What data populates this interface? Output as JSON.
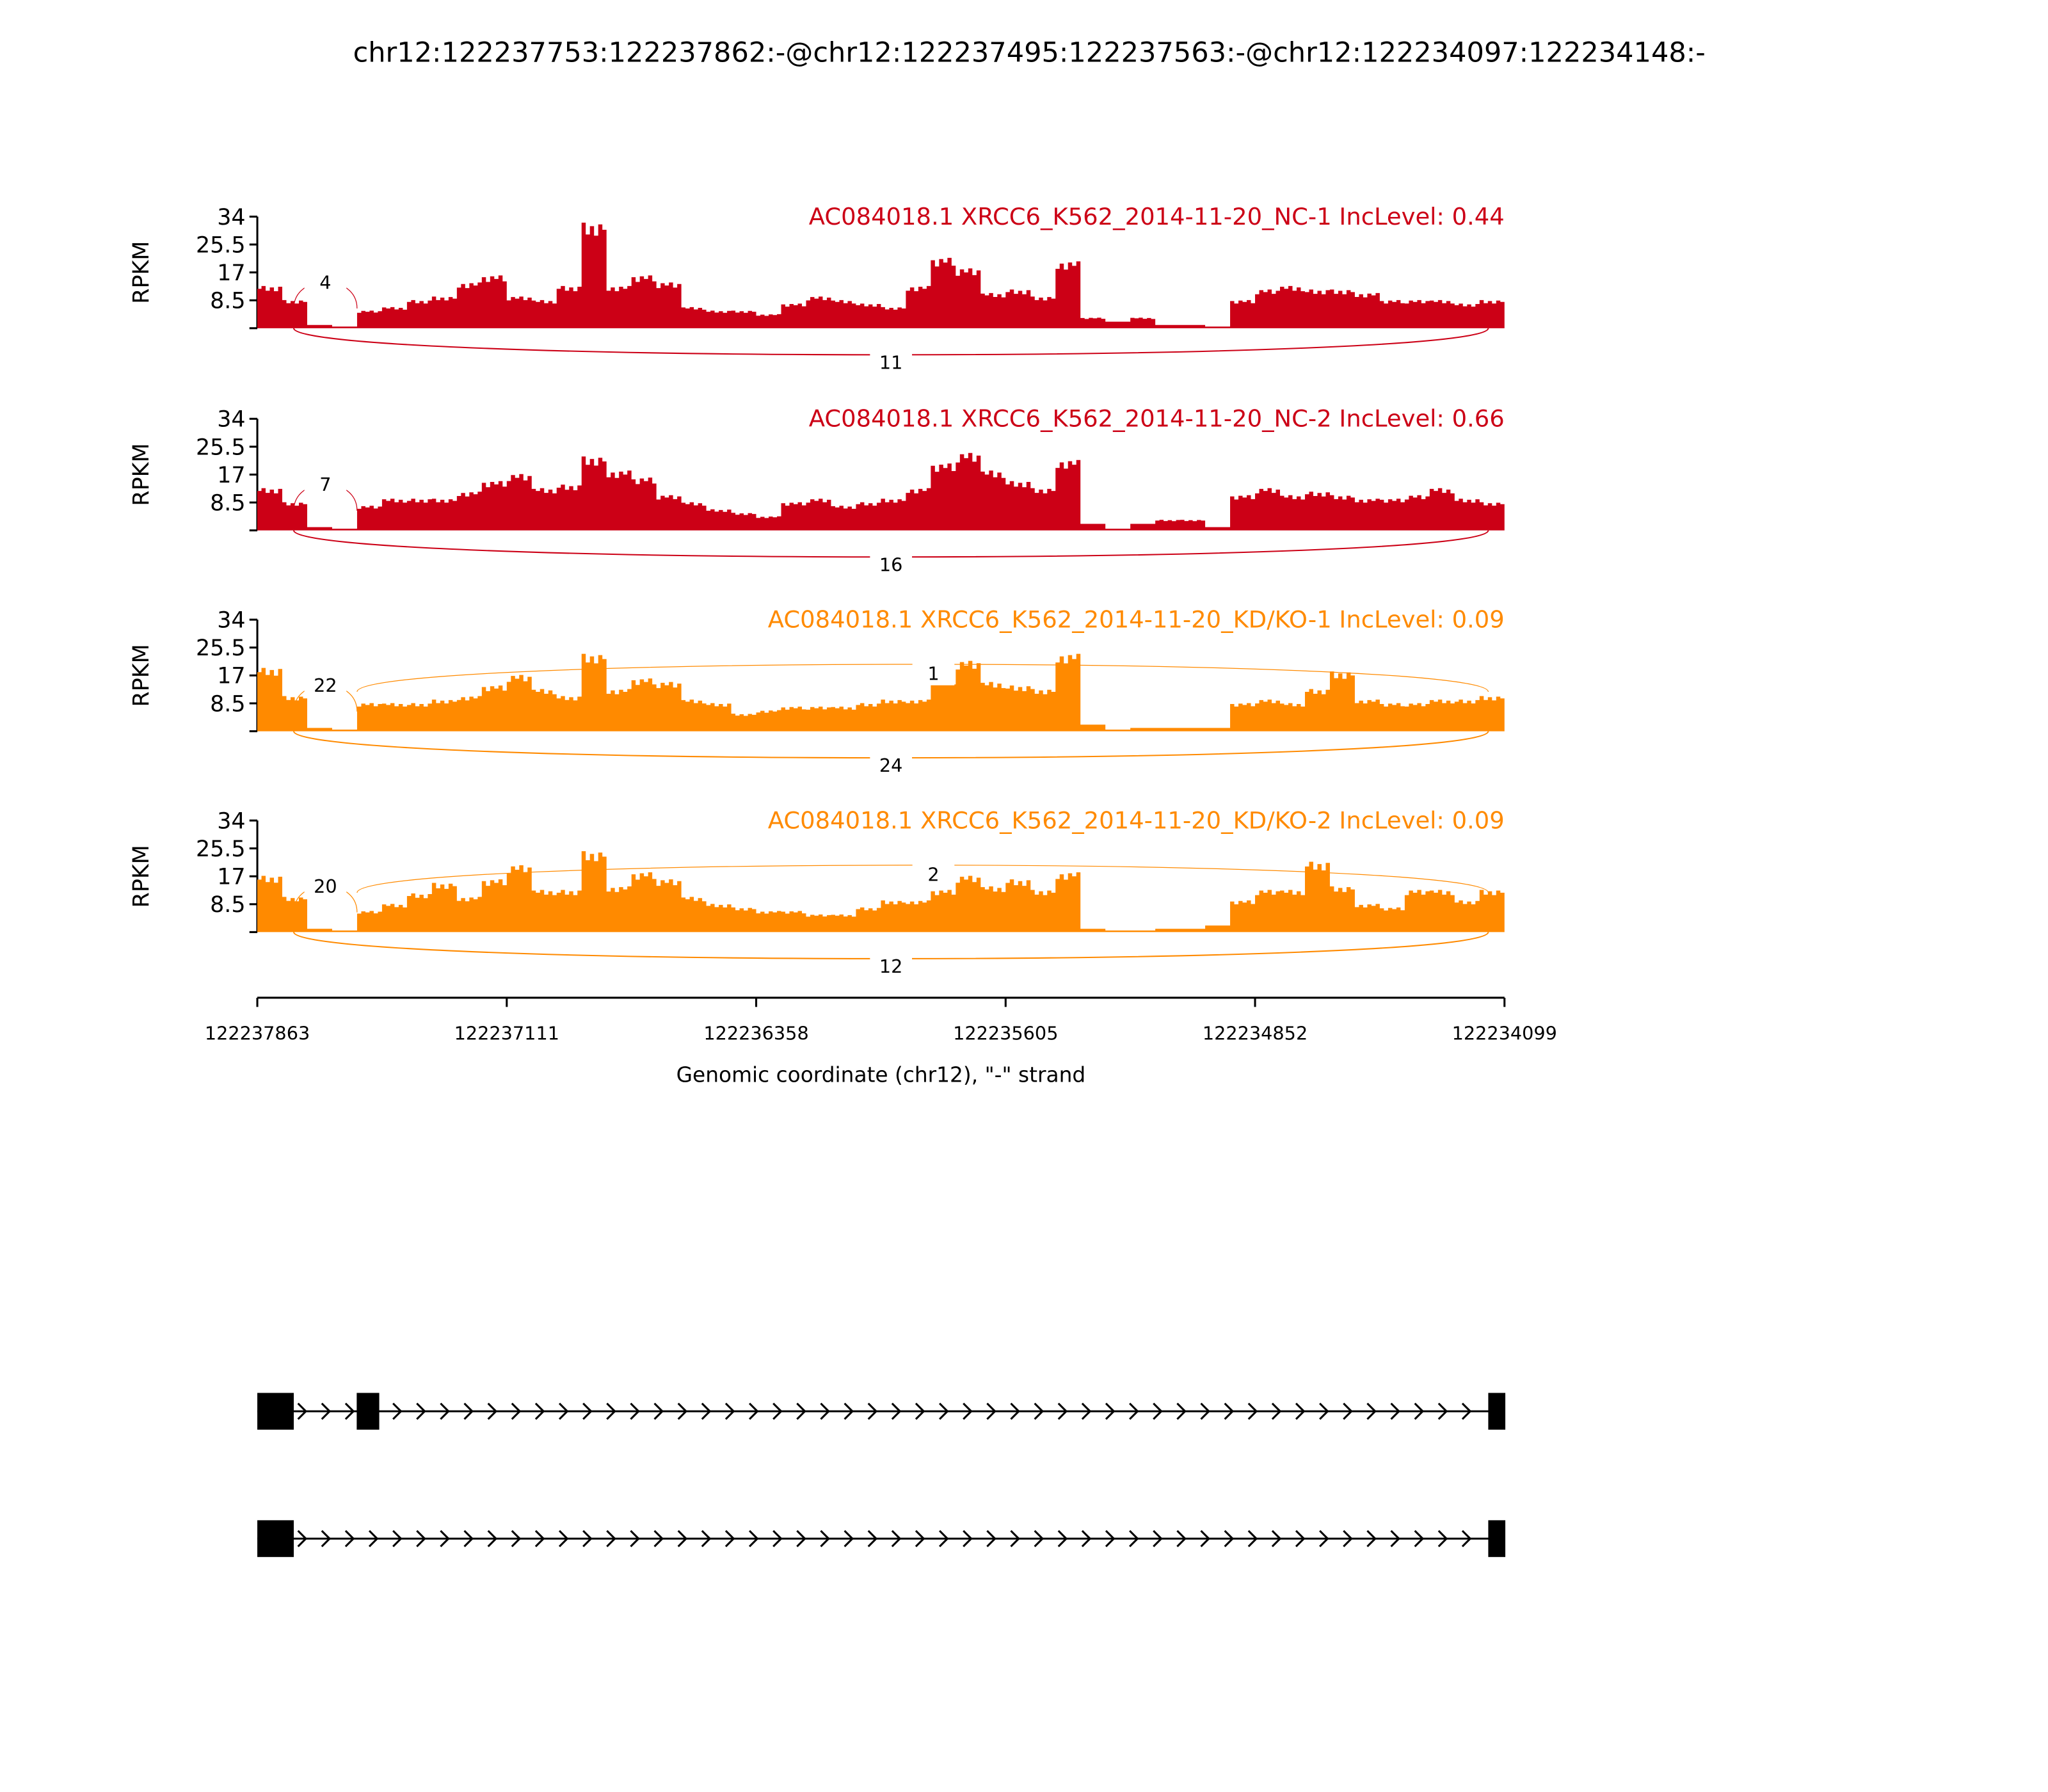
{
  "chart_data": {
    "type": "area",
    "title": "chr12:122237753:122237862:-@chr12:122237495:122237563:-@chr12:122234097:122234148:-",
    "xlabel": "Genomic coordinate (chr12), \"-\" strand",
    "ylabel": "RPKM",
    "xlim": [
      122237863,
      122234099
    ],
    "ylim": [
      0,
      34
    ],
    "xticks": [
      "122237863",
      "122237111",
      "122236358",
      "122235605",
      "122234852",
      "122234099"
    ],
    "yticks": [
      "34",
      "25.5",
      "17",
      "8.5"
    ],
    "bin_count": 50,
    "colors": {
      "NC": "#cc0016",
      "KD": "#ff8a00",
      "gene": "#000000"
    },
    "series": [
      {
        "name": "AC084018.1 XRCC6_K562_2014-11-20_NC-1 IncLevel: 0.44",
        "group": "NC",
        "values": [
          12,
          8,
          1,
          0.5,
          5,
          6,
          8,
          9,
          13,
          15,
          9,
          8,
          12,
          30,
          12,
          15,
          13,
          6,
          5,
          5,
          4,
          7,
          9,
          8,
          7,
          6,
          12,
          20,
          17,
          10,
          11,
          9,
          19,
          3,
          2,
          3,
          1,
          1,
          0.5,
          8,
          11,
          12,
          11,
          11,
          10,
          8,
          8,
          8,
          7,
          8
        ],
        "junctions": [
          {
            "start": 122237753,
            "end": 122237562,
            "count": "4",
            "side": "above"
          },
          {
            "start": 122237753,
            "end": 122234148,
            "count": "11",
            "side": "below"
          }
        ]
      },
      {
        "name": "AC084018.1 XRCC6_K562_2014-11-20_NC-2 IncLevel: 0.66",
        "group": "NC",
        "values": [
          12,
          8,
          1,
          0.5,
          7,
          9,
          9,
          9,
          11,
          14,
          16,
          12,
          13,
          21,
          17,
          15,
          10,
          8,
          6,
          5,
          4,
          8,
          9,
          7,
          8,
          9,
          12,
          19,
          22,
          17,
          14,
          12,
          20,
          2,
          0.5,
          2,
          3,
          3,
          1,
          10,
          12,
          10,
          11,
          10,
          9,
          9,
          10,
          12,
          9,
          8
        ],
        "junctions": [
          {
            "start": 122237753,
            "end": 122237562,
            "count": "7",
            "side": "above"
          },
          {
            "start": 122237753,
            "end": 122234148,
            "count": "16",
            "side": "below"
          }
        ]
      },
      {
        "name": "AC084018.1 XRCC6_K562_2014-11-20_KD/KO-1 IncLevel: 0.09",
        "group": "KD",
        "values": [
          18,
          10,
          1,
          0.5,
          8,
          8,
          8,
          9,
          10,
          13,
          16,
          12,
          10,
          22,
          12,
          15,
          14,
          9,
          8,
          5,
          6,
          7,
          7,
          7,
          8,
          9,
          9,
          15,
          20,
          14,
          13,
          12,
          22,
          2,
          0.5,
          1,
          1,
          1,
          1,
          8,
          9,
          8,
          12,
          17,
          9,
          8,
          8,
          9,
          9,
          10
        ],
        "junctions": [
          {
            "start": 122237753,
            "end": 122237562,
            "count": "22",
            "side": "above"
          },
          {
            "start": 122237562,
            "end": 122234148,
            "count": "1",
            "side": "above"
          },
          {
            "start": 122237753,
            "end": 122234148,
            "count": "24",
            "side": "below"
          }
        ]
      },
      {
        "name": "AC084018.1 XRCC6_K562_2014-11-20_KD/KO-2 IncLevel: 0.09",
        "group": "KD",
        "values": [
          16,
          10,
          1,
          0.5,
          6,
          8,
          11,
          14,
          10,
          15,
          19,
          12,
          12,
          23,
          13,
          17,
          15,
          10,
          8,
          7,
          6,
          6,
          5,
          5,
          7,
          9,
          9,
          12,
          16,
          13,
          15,
          12,
          17,
          1,
          0.5,
          0.5,
          1,
          1,
          2,
          9,
          12,
          12,
          20,
          13,
          8,
          7,
          12,
          12,
          9,
          12
        ],
        "junctions": [
          {
            "start": 122237753,
            "end": 122237562,
            "count": "20",
            "side": "above"
          },
          {
            "start": 122237562,
            "end": 122234148,
            "count": "2",
            "side": "above"
          },
          {
            "start": 122237753,
            "end": 122234148,
            "count": "12",
            "side": "below"
          }
        ]
      }
    ],
    "gene_models": [
      {
        "exons": [
          [
            122237863,
            122237753
          ],
          [
            122237563,
            122237495
          ],
          [
            122234148,
            122234097
          ]
        ]
      },
      {
        "exons": [
          [
            122237863,
            122237753
          ],
          [
            122234148,
            122234097
          ]
        ]
      }
    ]
  }
}
